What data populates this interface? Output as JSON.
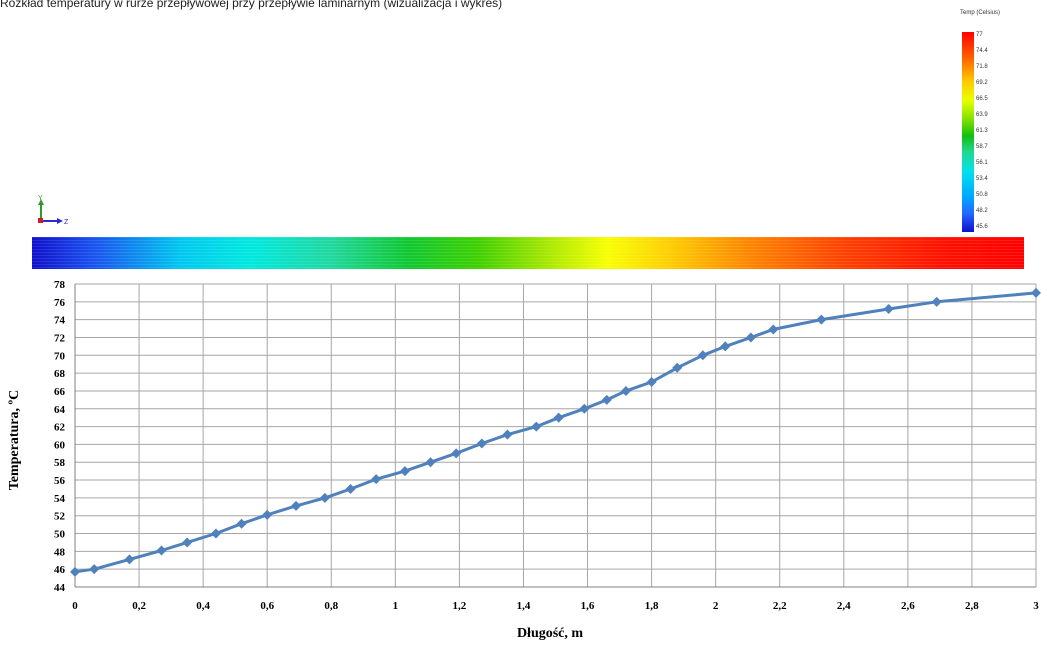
{
  "caption": "Rozkład temperatury w rurze przepływowej przy przepływie laminarnym (wizualizacja i wykres)",
  "legend": {
    "title": "Temp (Celsius)",
    "ticks": [
      "77",
      "74.4",
      "71.8",
      "69.2",
      "66.5",
      "63.9",
      "61.3",
      "58.7",
      "56.1",
      "53.4",
      "50.8",
      "48.2",
      "45.6"
    ]
  },
  "axis_triad": {
    "y_label": "Y",
    "z_label": "Z"
  },
  "colors": {
    "series": "#4f81bd",
    "grid": "#a6a6a6"
  },
  "chart_data": {
    "type": "line",
    "title": "",
    "xlabel": "Długość, m",
    "ylabel": "Temperatura, ºC",
    "xlim": [
      0,
      3
    ],
    "ylim": [
      44,
      78
    ],
    "x_ticks": [
      "0",
      "0,2",
      "0,4",
      "0,6",
      "0,8",
      "1",
      "1,2",
      "1,4",
      "1,6",
      "1,8",
      "2",
      "2,2",
      "2,4",
      "2,6",
      "2,8",
      "3"
    ],
    "y_ticks": [
      "44",
      "46",
      "48",
      "50",
      "52",
      "54",
      "56",
      "58",
      "60",
      "62",
      "64",
      "66",
      "68",
      "70",
      "72",
      "74",
      "76",
      "78"
    ],
    "grid": true,
    "series": [
      {
        "marker": "diamond",
        "x": [
          0,
          0.06,
          0.17,
          0.27,
          0.35,
          0.44,
          0.52,
          0.6,
          0.69,
          0.78,
          0.86,
          0.94,
          1.03,
          1.11,
          1.19,
          1.27,
          1.35,
          1.44,
          1.51,
          1.59,
          1.66,
          1.72,
          1.8,
          1.88,
          1.96,
          2.03,
          2.11,
          2.18,
          2.33,
          2.54,
          2.69,
          3.0
        ],
        "y": [
          45.7,
          46,
          47.1,
          48.1,
          49,
          50,
          51.1,
          52.1,
          53.1,
          54,
          55,
          56.1,
          57,
          58,
          59,
          60.1,
          61.1,
          62,
          63,
          64,
          65,
          66,
          67,
          68.6,
          70,
          71,
          72,
          72.9,
          74,
          75.2,
          76,
          77
        ]
      }
    ]
  }
}
